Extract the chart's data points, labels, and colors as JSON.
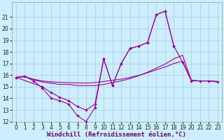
{
  "xlabel": "Windchill (Refroidissement éolien,°C)",
  "background_color": "#cceeff",
  "grid_color": "#aacccc",
  "line_color": "#990099",
  "ylim": [
    12,
    22
  ],
  "xlim": [
    -0.5,
    23.5
  ],
  "yticks": [
    12,
    13,
    14,
    15,
    16,
    17,
    18,
    19,
    20,
    21
  ],
  "xticks": [
    0,
    1,
    2,
    3,
    4,
    5,
    6,
    7,
    8,
    9,
    10,
    11,
    12,
    13,
    14,
    15,
    16,
    17,
    18,
    19,
    20,
    21,
    22,
    23
  ],
  "tick_fontsize": 5.5,
  "xlabel_fontsize": 6.5,
  "line1_x": [
    0,
    1,
    2,
    3,
    4,
    5,
    6,
    7,
    8,
    9,
    10,
    11,
    12,
    13,
    14,
    15,
    16,
    17,
    18
  ],
  "line1_y": [
    15.8,
    15.9,
    15.5,
    14.9,
    14.0,
    13.8,
    13.5,
    12.5,
    12.0,
    13.2,
    17.4,
    15.1,
    17.0,
    18.3,
    18.5,
    18.8,
    21.2,
    21.5,
    18.5
  ],
  "line2_x": [
    0,
    3,
    4,
    5,
    6,
    7,
    8,
    9,
    10,
    11,
    12,
    13,
    14,
    15,
    16,
    17,
    18,
    19,
    20,
    21,
    22,
    23
  ],
  "line2_y": [
    15.8,
    15.0,
    14.5,
    14.1,
    13.8,
    13.3,
    13.0,
    13.5,
    17.4,
    15.1,
    17.0,
    18.3,
    18.5,
    18.8,
    21.2,
    21.5,
    18.5,
    17.1,
    15.5,
    15.5,
    15.5,
    15.4
  ],
  "line3_x": [
    0,
    1,
    2,
    3,
    4,
    5,
    6,
    7,
    8,
    9,
    10,
    11,
    12,
    13,
    14,
    15,
    16,
    17,
    18,
    19,
    20,
    21,
    22,
    23
  ],
  "line3_y": [
    15.8,
    15.9,
    15.6,
    15.4,
    15.3,
    15.2,
    15.2,
    15.1,
    15.1,
    15.1,
    15.2,
    15.35,
    15.5,
    15.7,
    15.95,
    16.25,
    16.6,
    16.95,
    17.4,
    17.7,
    15.55,
    15.5,
    15.5,
    15.45
  ],
  "line4_x": [
    0,
    1,
    2,
    3,
    4,
    5,
    6,
    7,
    8,
    9,
    10,
    11,
    12,
    13,
    14,
    15,
    16,
    17,
    18,
    19,
    20,
    21,
    22,
    23
  ],
  "line4_y": [
    15.8,
    15.85,
    15.65,
    15.5,
    15.42,
    15.38,
    15.35,
    15.33,
    15.32,
    15.35,
    15.45,
    15.55,
    15.65,
    15.8,
    15.98,
    16.2,
    16.45,
    16.7,
    17.0,
    17.2,
    15.55,
    15.5,
    15.5,
    15.45
  ]
}
